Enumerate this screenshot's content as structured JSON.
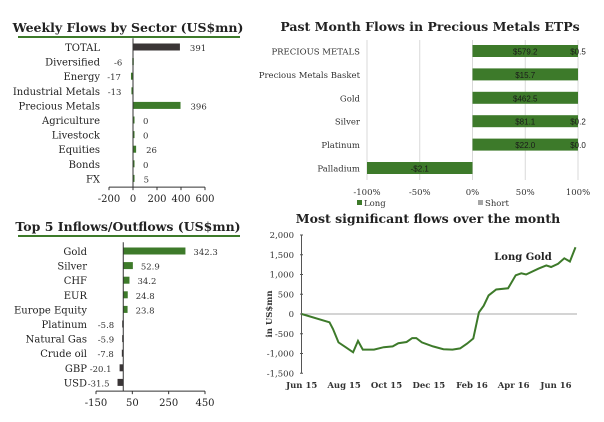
{
  "chart_data": [
    {
      "type": "bar",
      "orientation": "horizontal",
      "title": "Weekly Flows by Sector (US$mn)",
      "categories": [
        "TOTAL",
        "Diversified",
        "Energy",
        "Industrial Metals",
        "Precious Metals",
        "Agriculture",
        "Livestock",
        "Equities",
        "Bonds",
        "FX"
      ],
      "values": [
        391,
        -6,
        -17,
        -13,
        396,
        0,
        0,
        26,
        0,
        5
      ],
      "value_labels": [
        "391",
        "-6",
        "-17",
        "-13",
        "396",
        "0",
        "0",
        "26",
        "0",
        "5"
      ],
      "colors": [
        "#3a3536",
        "#3d7a2a",
        "#3d7a2a",
        "#3d7a2a",
        "#3d7a2a",
        "#3d7a2a",
        "#3d7a2a",
        "#3d7a2a",
        "#3d7a2a",
        "#3d7a2a"
      ],
      "xlim": [
        -200,
        600
      ],
      "ticks": [
        "-200",
        "0",
        "200",
        "400",
        "600"
      ],
      "tick_values": [
        -200,
        0,
        200,
        400,
        600
      ]
    },
    {
      "type": "bar",
      "orientation": "horizontal",
      "stacked": "100%",
      "title": "Past Month Flows in Precious Metals ETPs",
      "categories": [
        "PRECIOUS METALS",
        "Precious Metals Basket",
        "Gold",
        "Silver",
        "Platinum",
        "Palladium"
      ],
      "series": [
        {
          "name": "Long",
          "color": "#3d7a2a",
          "values_pct": [
            100,
            100,
            100,
            100,
            100,
            -100
          ],
          "labels": [
            "$579.2",
            "$15.7",
            "$462.5",
            "$81.1",
            "$22.0",
            "-$2.1"
          ]
        },
        {
          "name": "Short",
          "color": "#a6a6a6",
          "values_pct": [
            0,
            0,
            0,
            0,
            0,
            0
          ],
          "labels": [
            "$0.5",
            "",
            "",
            "$0.2",
            "$0.0",
            ""
          ]
        }
      ],
      "xlim": [
        -100,
        100
      ],
      "ticks": [
        "-100%",
        "-50%",
        "0%",
        "50%",
        "100%"
      ],
      "tick_values": [
        -100,
        -50,
        0,
        50,
        100
      ],
      "grid": true,
      "legend": "bottom"
    },
    {
      "type": "bar",
      "orientation": "horizontal",
      "title": "Top 5 Inflows/Outflows (US$mn)",
      "categories": [
        "Gold",
        "Silver",
        "CHF",
        "EUR",
        "Europe Equity",
        "Platinum",
        "Natural Gas",
        "Crude oil",
        "GBP",
        "USD"
      ],
      "values": [
        342.3,
        52.9,
        34.2,
        24.8,
        23.8,
        -5.8,
        -5.9,
        -7.8,
        -20.1,
        -31.5
      ],
      "value_labels": [
        "342.3",
        "52.9",
        "34.2",
        "24.8",
        "23.8",
        "-5.8",
        "-5.9",
        "-7.8",
        "-20.1",
        "-31.5"
      ],
      "colors": [
        "#3d7a2a",
        "#3d7a2a",
        "#3d7a2a",
        "#3d7a2a",
        "#3d7a2a",
        "#3a3536",
        "#3a3536",
        "#3a3536",
        "#3a3536",
        "#3a3536"
      ],
      "xlim": [
        -150,
        450
      ],
      "ticks": [
        "-150",
        "50",
        "250",
        "450"
      ],
      "tick_values": [
        -150,
        50,
        250,
        450
      ]
    },
    {
      "type": "line",
      "title": "Most significant flows over the month",
      "ylabel": "in US$mn",
      "ylim": [
        -1500,
        2000
      ],
      "yticks": [
        "2,000",
        "1,500",
        "1,000",
        "500",
        "0",
        "-500",
        "-1,000",
        "-1,500"
      ],
      "ytick_values": [
        2000,
        1500,
        1000,
        500,
        0,
        -500,
        -1000,
        -1500
      ],
      "xticks": [
        "Jun 15",
        "Aug 15",
        "Oct 15",
        "Dec 15",
        "Feb 16",
        "Apr 16",
        "Jun 16"
      ],
      "xtick_values": [
        "2015-06-01",
        "2015-08-01",
        "2015-10-01",
        "2015-12-01",
        "2016-02-01",
        "2016-04-01",
        "2016-06-01"
      ],
      "annotation": "Long Gold",
      "color": "#3d7a2a",
      "series": [
        {
          "name": "Long Gold",
          "points": [
            [
              "2015-06-01",
              0
            ],
            [
              "2015-07-11",
              -210
            ],
            [
              "2015-07-16",
              -380
            ],
            [
              "2015-07-24",
              -720
            ],
            [
              "2015-08-04",
              -850
            ],
            [
              "2015-08-14",
              -970
            ],
            [
              "2015-08-21",
              -680
            ],
            [
              "2015-08-28",
              -900
            ],
            [
              "2015-09-13",
              -900
            ],
            [
              "2015-09-27",
              -840
            ],
            [
              "2015-10-10",
              -820
            ],
            [
              "2015-10-18",
              -740
            ],
            [
              "2015-10-30",
              -710
            ],
            [
              "2015-11-07",
              -610
            ],
            [
              "2015-11-13",
              -610
            ],
            [
              "2015-11-21",
              -720
            ],
            [
              "2015-12-07",
              -820
            ],
            [
              "2015-12-22",
              -890
            ],
            [
              "2016-01-04",
              -900
            ],
            [
              "2016-01-15",
              -870
            ],
            [
              "2016-01-25",
              -750
            ],
            [
              "2016-02-03",
              -620
            ],
            [
              "2016-02-11",
              40
            ],
            [
              "2016-02-18",
              210
            ],
            [
              "2016-02-25",
              470
            ],
            [
              "2016-03-07",
              620
            ],
            [
              "2016-03-24",
              650
            ],
            [
              "2016-04-04",
              980
            ],
            [
              "2016-04-12",
              1030
            ],
            [
              "2016-04-19",
              1000
            ],
            [
              "2016-05-07",
              1150
            ],
            [
              "2016-05-18",
              1230
            ],
            [
              "2016-05-25",
              1190
            ],
            [
              "2016-06-04",
              1270
            ],
            [
              "2016-06-13",
              1410
            ],
            [
              "2016-06-21",
              1330
            ],
            [
              "2016-06-29",
              1690
            ]
          ]
        }
      ]
    }
  ]
}
